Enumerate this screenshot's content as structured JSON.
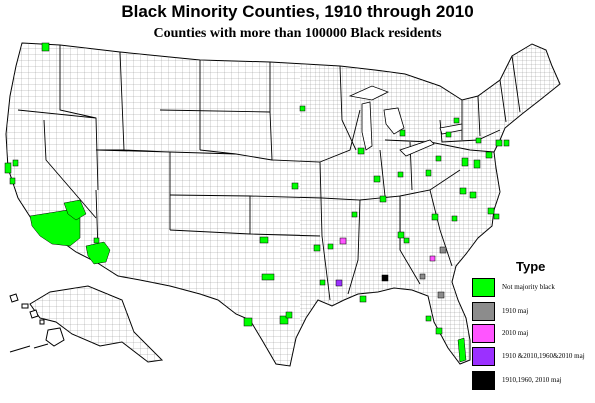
{
  "title": "Black Minority Counties, 1910 through 2010",
  "subtitle": "Counties with more than 100000 Black residents",
  "legend": {
    "title": "Type",
    "items": [
      {
        "label": "Not majority black",
        "color": "#00ff00"
      },
      {
        "label": "1910 maj",
        "color": "#8c8c8c"
      },
      {
        "label": "2010 maj",
        "color": "#ff55ff"
      },
      {
        "label": "1910 &2010,1960&2010 maj",
        "color": "#9b30ff"
      },
      {
        "label": "1910,1960, 2010 maj",
        "color": "#000000"
      }
    ]
  },
  "colors": {
    "land": "#ffffff",
    "border": "#555555",
    "water": "#ffffff"
  }
}
